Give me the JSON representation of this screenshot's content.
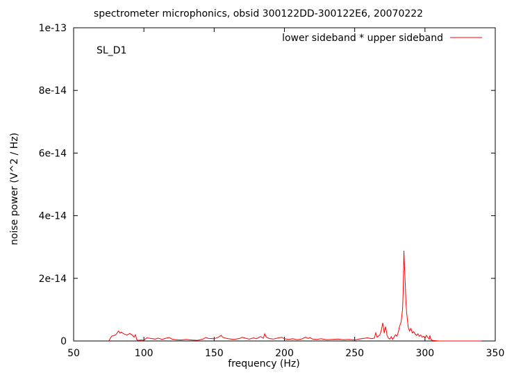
{
  "chart_data": {
    "type": "line",
    "title": "spectrometer microphonics, obsid 300122DD-300122E6, 20070222",
    "xlabel": "frequency (Hz)",
    "ylabel": "noise power (V^2 / Hz)",
    "annotation": "SL_D1",
    "xlim": [
      50,
      350
    ],
    "ylim": [
      0,
      1e-13
    ],
    "xticks": [
      50,
      100,
      150,
      200,
      250,
      300,
      350
    ],
    "yticks": [
      0,
      2e-14,
      4e-14,
      6e-14,
      8e-14,
      1e-13
    ],
    "xtick_labels": [
      "50",
      "100",
      "150",
      "200",
      "250",
      "300",
      "350"
    ],
    "ytick_labels": [
      "0",
      "2e-14",
      "4e-14",
      "6e-14",
      "8e-14",
      "1e-13"
    ],
    "grid": false,
    "legend_position": "top-right",
    "series": [
      {
        "name": "lower sideband * upper sideband",
        "color": "#ff0000",
        "x": [
          75,
          77,
          79,
          80,
          81,
          82,
          83,
          84,
          86,
          88,
          90,
          92,
          93,
          94,
          95,
          96,
          98,
          100,
          102,
          105,
          108,
          110,
          113,
          115,
          118,
          120,
          123,
          126,
          130,
          134,
          138,
          142,
          144,
          146,
          150,
          153,
          155,
          156,
          158,
          160,
          164,
          168,
          170,
          172,
          175,
          178,
          180,
          183,
          185,
          186,
          187,
          189,
          192,
          195,
          198,
          200,
          203,
          206,
          209,
          212,
          215,
          217,
          218,
          220,
          223,
          226,
          230,
          234,
          238,
          242,
          246,
          250,
          253,
          256,
          259,
          262,
          264,
          265,
          266,
          267,
          268,
          269,
          270,
          271,
          272,
          273,
          274,
          275,
          276,
          277,
          278,
          279,
          280,
          281,
          282,
          283,
          284,
          284.5,
          285,
          285.5,
          286,
          286.5,
          287,
          288,
          289,
          290,
          291,
          292,
          293,
          294,
          295,
          296,
          297,
          298,
          299,
          300,
          301,
          302,
          303,
          303.5,
          304,
          305,
          310,
          340
        ],
        "y": [
          0,
          1.5e-15,
          1.8e-15,
          2e-15,
          2.6e-15,
          3.2e-15,
          2.5e-15,
          2.8e-15,
          2.2e-15,
          1.9e-15,
          2.4e-15,
          1.8e-15,
          1.2e-15,
          2e-15,
          3e-16,
          2e-16,
          3e-16,
          2e-16,
          1e-15,
          8e-16,
          6e-16,
          9e-16,
          5e-16,
          8e-16,
          1.1e-15,
          6e-16,
          4e-16,
          3e-16,
          5e-16,
          3e-16,
          2e-16,
          6e-16,
          1.1e-15,
          8e-16,
          7e-16,
          1.2e-15,
          1.8e-15,
          1.2e-15,
          9e-16,
          7e-16,
          5e-16,
          8e-16,
          1.2e-15,
          9e-16,
          6e-16,
          1e-15,
          7e-16,
          1.4e-15,
          9e-16,
          2.3e-15,
          1.3e-15,
          8e-16,
          6e-16,
          9e-16,
          1.2e-15,
          7e-16,
          5e-16,
          7e-16,
          4e-16,
          6e-16,
          1.2e-15,
          8e-16,
          1.1e-15,
          6e-16,
          5e-16,
          7e-16,
          4e-16,
          5e-16,
          6e-16,
          4e-16,
          5e-16,
          3e-16,
          6e-16,
          8e-16,
          1e-15,
          7e-16,
          9e-16,
          2.6e-15,
          1.2e-15,
          1.6e-15,
          2e-15,
          3.5e-15,
          5.8e-15,
          2.5e-15,
          4.6e-15,
          1.8e-15,
          9e-16,
          6e-16,
          1.4e-15,
          5e-16,
          1.2e-15,
          2e-15,
          1.5e-15,
          2.8e-15,
          4.8e-15,
          6e-15,
          1e-14,
          1.6e-14,
          2.88e-14,
          2.3e-14,
          1.8e-14,
          1.2e-14,
          9e-15,
          4.5e-15,
          3.2e-15,
          4e-15,
          2.6e-15,
          3e-15,
          2.2e-15,
          1.8e-15,
          2.3e-15,
          1.5e-15,
          1.9e-15,
          1.2e-15,
          1.5e-15,
          9e-16,
          1.8e-15,
          1.1e-15,
          6e-16,
          1.8e-15,
          8e-16,
          2e-16,
          0,
          0
        ]
      }
    ]
  }
}
